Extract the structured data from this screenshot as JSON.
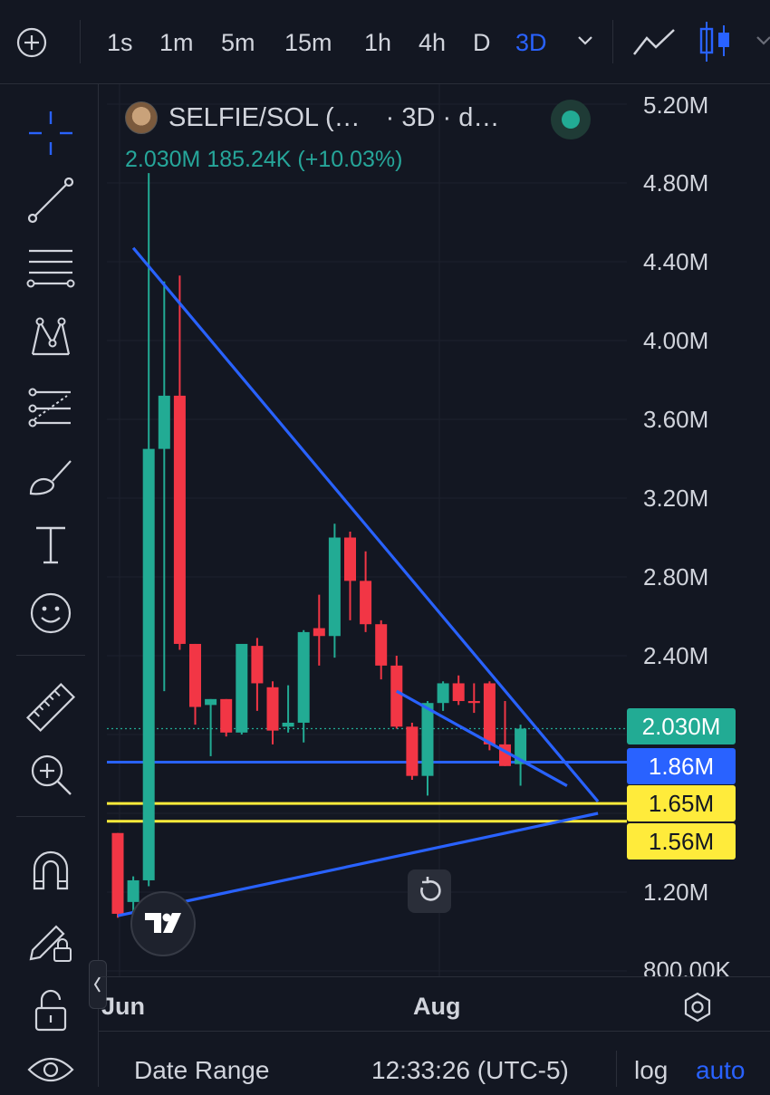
{
  "toolbar": {
    "add_icon": "plus-circle-icon",
    "intervals": [
      "1s",
      "1m",
      "5m",
      "15m",
      "1h",
      "4h",
      "D",
      "3D"
    ],
    "active_interval": "3D",
    "chart_type_icons": [
      "line-chart-icon",
      "candles-icon"
    ]
  },
  "sidebar": {
    "tools": [
      "crosshair-icon",
      "trend-line-icon",
      "fib-retracement-icon",
      "pattern-icon",
      "forecast-icon",
      "brush-icon",
      "text-icon",
      "emoji-icon",
      "ruler-icon",
      "zoom-in-icon",
      "magnet-icon",
      "lock-drawing-icon",
      "lock-icon",
      "eye-icon"
    ]
  },
  "legend": {
    "symbol": "SELFIE/SOL (…",
    "interval_text": "· 3D · d…",
    "values": "2.030M  185.24K (+10.03%)"
  },
  "price_axis": {
    "labels": [
      "5.20M",
      "4.80M",
      "4.40M",
      "4.00M",
      "3.60M",
      "3.20M",
      "2.80M",
      "2.40M",
      "1.20M",
      "800.00K"
    ],
    "tags": [
      {
        "text": "2.030M",
        "bg": "#22ab94",
        "color": "#ffffff"
      },
      {
        "text": "1.86M",
        "bg": "#2962ff",
        "color": "#ffffff"
      },
      {
        "text": "1.65M",
        "bg": "#ffeb3b",
        "color": "#131722"
      },
      {
        "text": "1.56M",
        "bg": "#ffeb3b",
        "color": "#131722"
      }
    ]
  },
  "time_axis": {
    "labels": [
      "Jun",
      "Aug"
    ]
  },
  "bottombar": {
    "date_range": "Date Range",
    "clock": "12:33:26 (UTC-5)",
    "log": "log",
    "auto": "auto"
  },
  "colors": {
    "up": "#22ab94",
    "down": "#f23645",
    "trendline": "#2962ff",
    "hline_blue": "#2962ff",
    "hline_yellow": "#ffeb3b",
    "accent": "#2962ff"
  },
  "chart_data": {
    "type": "candlestick",
    "ylim": [
      800000,
      5200000
    ],
    "candles": [
      {
        "o": 1500000,
        "h": 1500000,
        "l": 1070000,
        "c": 1090000
      },
      {
        "o": 1150000,
        "h": 1280000,
        "l": 1080000,
        "c": 1260000
      },
      {
        "o": 1260000,
        "h": 4850000,
        "l": 1230000,
        "c": 3450000
      },
      {
        "o": 3450000,
        "h": 4300000,
        "l": 2220000,
        "c": 3720000
      },
      {
        "o": 3720000,
        "h": 4330000,
        "l": 2430000,
        "c": 2460000
      },
      {
        "o": 2460000,
        "h": 2460000,
        "l": 2050000,
        "c": 2140000
      },
      {
        "o": 2150000,
        "h": 2180000,
        "l": 1890000,
        "c": 2180000
      },
      {
        "o": 2180000,
        "h": 2180000,
        "l": 1990000,
        "c": 2010000
      },
      {
        "o": 2010000,
        "h": 2460000,
        "l": 2000000,
        "c": 2460000
      },
      {
        "o": 2450000,
        "h": 2490000,
        "l": 2120000,
        "c": 2260000
      },
      {
        "o": 2240000,
        "h": 2270000,
        "l": 1950000,
        "c": 2020000
      },
      {
        "o": 2040000,
        "h": 2250000,
        "l": 2010000,
        "c": 2060000
      },
      {
        "o": 2060000,
        "h": 2530000,
        "l": 1960000,
        "c": 2520000
      },
      {
        "o": 2540000,
        "h": 2710000,
        "l": 2350000,
        "c": 2500000
      },
      {
        "o": 2500000,
        "h": 3070000,
        "l": 2390000,
        "c": 3000000
      },
      {
        "o": 3000000,
        "h": 3030000,
        "l": 2580000,
        "c": 2780000
      },
      {
        "o": 2780000,
        "h": 2930000,
        "l": 2520000,
        "c": 2560000
      },
      {
        "o": 2560000,
        "h": 2580000,
        "l": 2280000,
        "c": 2350000
      },
      {
        "o": 2350000,
        "h": 2400000,
        "l": 2030000,
        "c": 2040000
      },
      {
        "o": 2040000,
        "h": 2060000,
        "l": 1770000,
        "c": 1790000
      },
      {
        "o": 1790000,
        "h": 2170000,
        "l": 1690000,
        "c": 2160000
      },
      {
        "o": 2160000,
        "h": 2270000,
        "l": 2120000,
        "c": 2260000
      },
      {
        "o": 2260000,
        "h": 2300000,
        "l": 2150000,
        "c": 2170000
      },
      {
        "o": 2170000,
        "h": 2260000,
        "l": 2110000,
        "c": 2160000
      },
      {
        "o": 2260000,
        "h": 2270000,
        "l": 1920000,
        "c": 1950000
      },
      {
        "o": 1950000,
        "h": 2170000,
        "l": 1840000,
        "c": 1840000
      },
      {
        "o": 1850000,
        "h": 2050000,
        "l": 1740000,
        "c": 2030000
      }
    ],
    "hlines": [
      {
        "price": 1860000,
        "color": "#2962ff"
      },
      {
        "price": 1650000,
        "color": "#ffeb3b"
      },
      {
        "price": 1560000,
        "color": "#ffeb3b"
      }
    ],
    "trendlines": [
      {
        "from": [
          1,
          4470000
        ],
        "to": [
          31,
          1660000
        ]
      },
      {
        "from": [
          0,
          1080000
        ],
        "to": [
          31,
          1600000
        ]
      },
      {
        "from": [
          18,
          2220000
        ],
        "to": [
          29,
          1740000
        ]
      }
    ],
    "last_price": 2030000
  }
}
